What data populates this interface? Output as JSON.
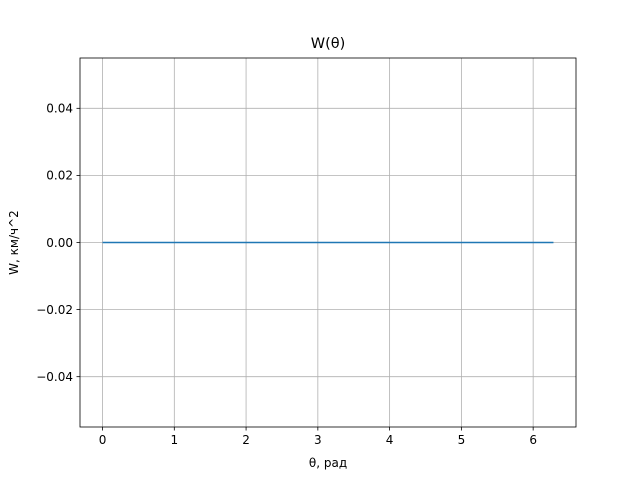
{
  "chart_data": {
    "type": "line",
    "title": "W(θ)",
    "xlabel": "θ, рад",
    "ylabel": "W, км/ч^2",
    "xlim": [
      -0.314,
      6.597
    ],
    "ylim": [
      -0.055,
      0.055
    ],
    "x_ticks": [
      0,
      1,
      2,
      3,
      4,
      5,
      6
    ],
    "x_tick_labels": [
      "0",
      "1",
      "2",
      "3",
      "4",
      "5",
      "6"
    ],
    "y_ticks": [
      -0.04,
      -0.02,
      0.0,
      0.02,
      0.04
    ],
    "y_tick_labels": [
      "−0.04",
      "−0.02",
      "0.00",
      "0.02",
      "0.04"
    ],
    "grid": true,
    "series": [
      {
        "color": "#1f77b4",
        "x": [
          0,
          6.283
        ],
        "y": [
          0,
          0
        ]
      }
    ]
  }
}
